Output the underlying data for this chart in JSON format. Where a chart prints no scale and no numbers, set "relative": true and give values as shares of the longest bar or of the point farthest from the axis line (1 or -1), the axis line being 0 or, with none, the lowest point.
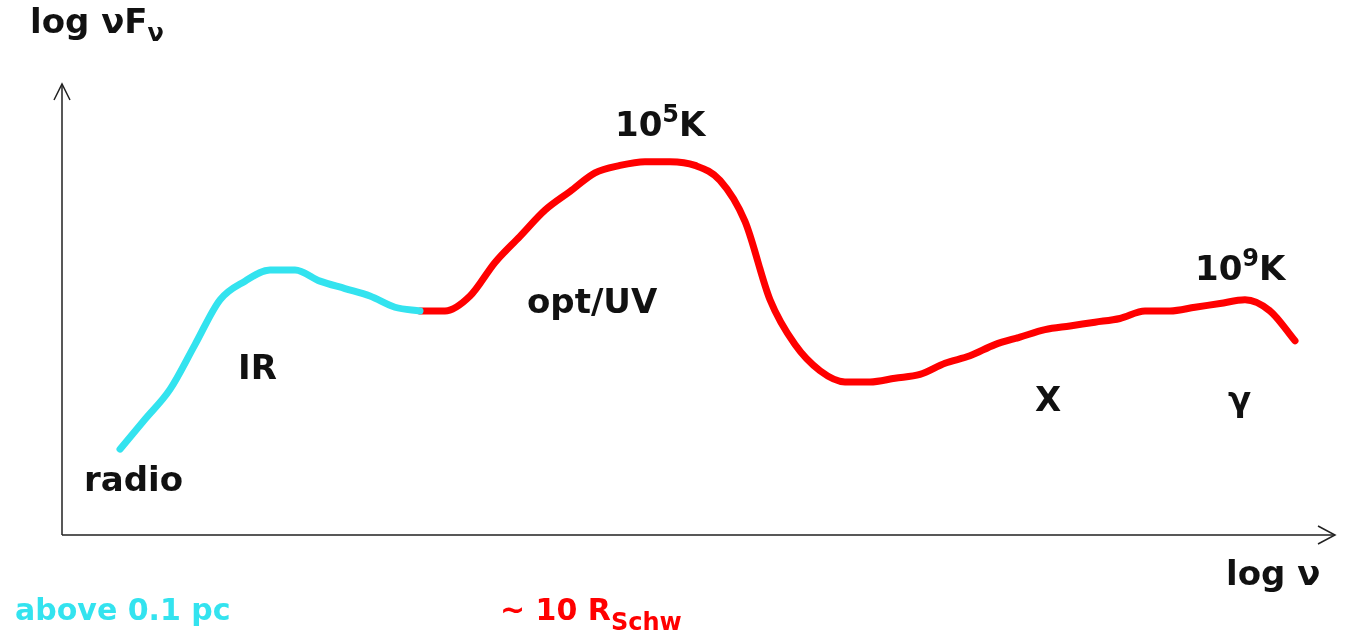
{
  "chart_data": {
    "type": "line",
    "relative": true,
    "xlabel": "log ν",
    "ylabel": "log νF$_{ν}$",
    "tick_labels": false,
    "legend": "bottom",
    "marker": "none",
    "line_style": "solid",
    "categories": [
      null,
      null,
      null,
      null,
      null,
      null,
      null,
      null,
      null,
      null,
      null,
      null,
      null,
      null,
      null,
      null,
      null,
      null,
      null,
      null,
      null,
      null,
      null,
      null,
      null,
      null,
      null,
      null,
      null,
      null,
      null,
      null,
      null,
      null,
      null,
      null,
      null,
      null,
      null,
      null,
      null,
      null,
      null,
      null,
      null,
      null,
      null,
      null
    ],
    "series": [
      {
        "name": "above 0.1 pc",
        "color": "#33e3ef",
        "values": [
          0.23,
          0.31,
          0.39,
          0.51,
          0.63,
          0.68,
          0.71,
          0.71,
          0.68,
          0.66,
          0.64,
          0.61,
          0.6,
          null,
          null,
          null,
          null,
          null,
          null,
          null,
          null,
          null,
          null,
          null,
          null,
          null,
          null,
          null,
          null,
          null,
          null,
          null,
          null,
          null,
          null,
          null,
          null,
          null,
          null,
          null,
          null,
          null,
          null,
          null,
          null,
          null,
          null,
          null
        ]
      },
      {
        "name": "~ 10 R$_{Schw}$",
        "color": "#ff0000",
        "values": [
          null,
          null,
          null,
          null,
          null,
          null,
          null,
          null,
          null,
          null,
          null,
          null,
          0.6,
          0.6,
          0.64,
          0.73,
          0.8,
          0.87,
          0.92,
          0.97,
          0.99,
          1,
          1,
          0.99,
          0.95,
          0.84,
          0.63,
          0.51,
          0.44,
          0.41,
          0.41,
          0.42,
          0.43,
          0.46,
          0.48,
          0.51,
          0.53,
          0.55,
          0.56,
          0.57,
          0.58,
          0.6,
          0.6,
          0.61,
          0.62,
          0.63,
          0.6,
          0.52
        ]
      }
    ],
    "annotations": [
      "radio",
      "IR",
      "opt/UV",
      "X",
      "γ",
      "10$^{5}$K",
      "10$^{9}$K"
    ]
  }
}
